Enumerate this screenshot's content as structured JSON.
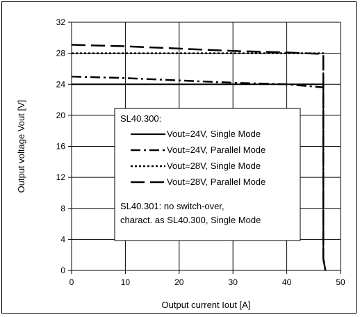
{
  "chart_data": {
    "type": "line",
    "xlabel": "Output current Iout [A]",
    "ylabel": "Output voltage Vout [V]",
    "xlim": [
      0,
      50
    ],
    "ylim": [
      0,
      32
    ],
    "x_ticks": [
      0,
      10,
      20,
      30,
      40,
      50
    ],
    "y_ticks": [
      0,
      4,
      8,
      12,
      16,
      20,
      24,
      28,
      32
    ],
    "grid": true,
    "legend": {
      "heading": "SL40.300:",
      "note_lines": [
        "SL40.301: no switch-over,",
        "charact. as SL40.300, Single Mode"
      ],
      "placement": "center"
    },
    "series": [
      {
        "name": "Vout=24V, Single Mode",
        "dash": "solid",
        "x": [
          0,
          46.8,
          46.8,
          47.2
        ],
        "y": [
          24.0,
          24.0,
          1.5,
          0
        ]
      },
      {
        "name": "Vout=24V, Parallel Mode",
        "dash": "dashdot",
        "x": [
          0,
          10,
          20,
          30,
          40,
          46.8,
          46.8,
          47.2
        ],
        "y": [
          25.0,
          24.8,
          24.5,
          24.2,
          24.0,
          23.6,
          1.5,
          0
        ]
      },
      {
        "name": "Vout=28V, Single Mode",
        "dash": "dot",
        "x": [
          0,
          46.8,
          46.8,
          47.2
        ],
        "y": [
          28.0,
          28.0,
          1.5,
          0
        ]
      },
      {
        "name": "Vout=28V, Parallel Mode",
        "dash": "longdash",
        "x": [
          0,
          10,
          20,
          30,
          40,
          46.8,
          46.8,
          47.2
        ],
        "y": [
          29.1,
          28.9,
          28.6,
          28.3,
          28.1,
          27.9,
          1.5,
          0
        ]
      }
    ]
  }
}
